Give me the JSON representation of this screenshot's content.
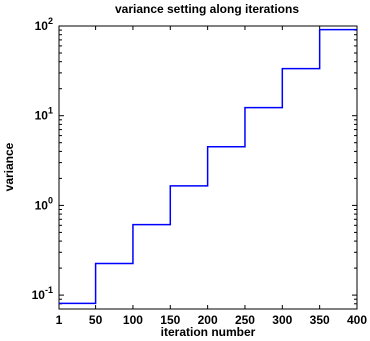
{
  "chart_data": {
    "type": "line",
    "title": "variance setting along iterations",
    "xlabel": "iteration number",
    "ylabel": "variance",
    "xlim": [
      1,
      400
    ],
    "ylim": [
      0.07,
      100
    ],
    "yscale": "log",
    "grid": false,
    "x_ticks": [
      "1",
      "50",
      "100",
      "150",
      "200",
      "250",
      "300",
      "350",
      "400"
    ],
    "y_ticks": [
      {
        "base": "10",
        "exp": "2",
        "value": 100
      },
      {
        "base": "10",
        "exp": "1",
        "value": 10
      },
      {
        "base": "10",
        "exp": "0",
        "value": 1
      },
      {
        "base": "10",
        "exp": "-1",
        "value": 0.1
      }
    ],
    "line_color": "#0000ff",
    "series": [
      {
        "step": "post",
        "x": [
          1,
          50,
          100,
          150,
          200,
          250,
          300,
          350,
          400
        ],
        "values": [
          0.081,
          0.225,
          0.61,
          1.65,
          4.5,
          12.3,
          33.5,
          91,
          91
        ]
      }
    ]
  }
}
